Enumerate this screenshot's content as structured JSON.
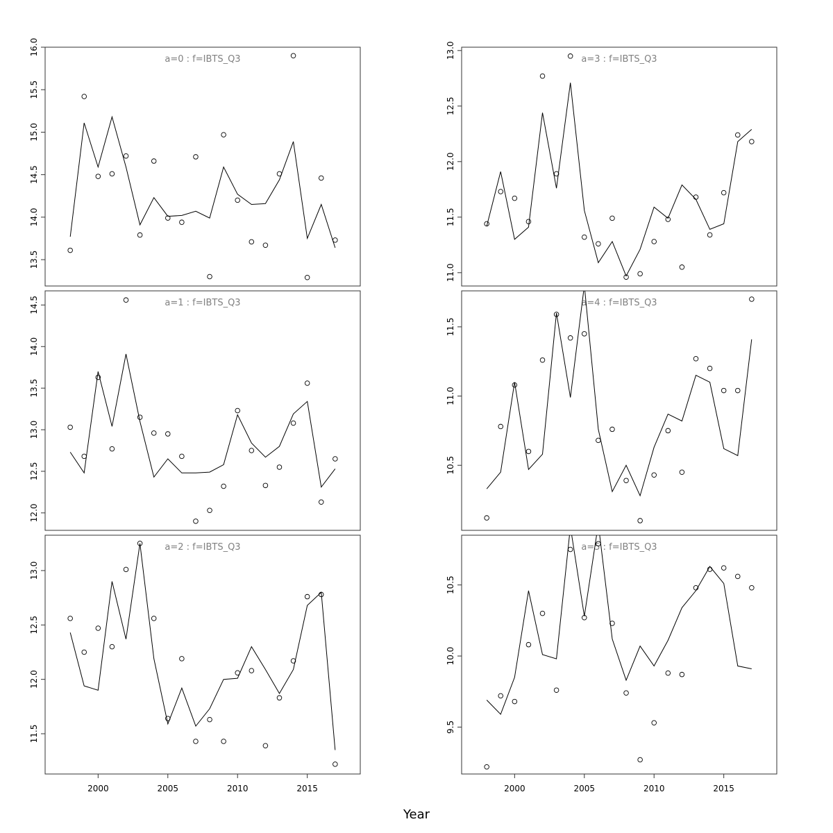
{
  "chart_data": {
    "type": "line",
    "xlabel": "Year",
    "x_ticks": [
      2000,
      2005,
      2010,
      2015
    ],
    "x": [
      1998,
      1999,
      2000,
      2001,
      2002,
      2003,
      2004,
      2005,
      2006,
      2007,
      2008,
      2009,
      2010,
      2011,
      2012,
      2013,
      2014,
      2015,
      2016,
      2017
    ],
    "xlim": [
      1996.2,
      2018.8
    ],
    "grid": false,
    "panels": [
      {
        "label": "a=0  :  f=IBTS_Q3",
        "ylim": [
          13.19,
          16.0
        ],
        "y_ticks": [
          13.5,
          14.0,
          14.5,
          15.0,
          15.5,
          16.0
        ],
        "observed": [
          13.61,
          15.42,
          14.48,
          14.51,
          14.72,
          13.79,
          14.66,
          13.99,
          13.94,
          14.71,
          13.3,
          14.97,
          14.2,
          13.71,
          13.67,
          14.51,
          15.9,
          13.29,
          14.46,
          13.73
        ],
        "fitted": [
          13.77,
          15.11,
          14.59,
          15.18,
          14.59,
          13.91,
          14.23,
          14.01,
          14.02,
          14.07,
          13.99,
          14.59,
          14.27,
          14.15,
          14.16,
          14.44,
          14.89,
          13.75,
          14.15,
          13.64
        ]
      },
      {
        "label": "a=3  :  f=IBTS_Q3",
        "ylim": [
          10.88,
          13.03
        ],
        "y_ticks": [
          11.0,
          11.5,
          12.0,
          12.5,
          13.0
        ],
        "observed": [
          11.44,
          11.73,
          11.67,
          11.46,
          12.77,
          11.89,
          12.95,
          11.32,
          11.26,
          11.49,
          10.96,
          10.99,
          11.28,
          11.48,
          11.05,
          11.68,
          11.34,
          11.72,
          12.24,
          12.18
        ],
        "fitted": [
          11.42,
          11.91,
          11.3,
          11.41,
          12.44,
          11.76,
          12.71,
          11.56,
          11.09,
          11.28,
          10.97,
          11.21,
          11.59,
          11.49,
          11.79,
          11.66,
          11.39,
          11.44,
          12.18,
          12.29
        ]
      },
      {
        "label": "a=1  :  f=IBTS_Q3",
        "ylim": [
          11.79,
          14.67
        ],
        "y_ticks": [
          12.0,
          12.5,
          13.0,
          13.5,
          14.0,
          14.5
        ],
        "observed": [
          13.03,
          12.68,
          13.63,
          12.77,
          14.56,
          13.15,
          12.96,
          12.95,
          12.68,
          11.9,
          12.03,
          12.32,
          13.23,
          12.75,
          12.33,
          12.55,
          13.08,
          13.56,
          12.13,
          12.65
        ],
        "fitted": [
          12.73,
          12.48,
          13.7,
          13.04,
          13.91,
          13.1,
          12.43,
          12.65,
          12.48,
          12.48,
          12.49,
          12.58,
          13.18,
          12.84,
          12.67,
          12.8,
          13.19,
          13.34,
          12.31,
          12.53
        ]
      },
      {
        "label": "a=4  :  f=IBTS_Q3",
        "ylim": [
          10.03,
          11.76
        ],
        "y_ticks": [
          10.5,
          11.0,
          11.5
        ],
        "observed": [
          10.12,
          10.78,
          11.08,
          10.6,
          11.26,
          11.59,
          11.42,
          11.45,
          10.68,
          10.76,
          10.39,
          10.1,
          10.43,
          10.75,
          10.45,
          11.27,
          11.2,
          11.04,
          11.04,
          11.7
        ],
        "fitted": [
          10.33,
          10.45,
          11.1,
          10.47,
          10.58,
          11.6,
          10.99,
          11.8,
          10.76,
          10.31,
          10.5,
          10.28,
          10.63,
          10.87,
          10.82,
          11.15,
          11.1,
          10.62,
          10.57,
          11.41
        ]
      },
      {
        "label": "a=2  :  f=IBTS_Q3",
        "ylim": [
          11.13,
          13.325
        ],
        "y_ticks": [
          11.5,
          12.0,
          12.5,
          13.0
        ],
        "observed": [
          12.56,
          12.25,
          12.47,
          12.3,
          13.01,
          13.25,
          12.56,
          11.64,
          12.19,
          11.43,
          11.63,
          11.43,
          12.06,
          12.08,
          11.39,
          11.83,
          12.17,
          12.76,
          12.78,
          11.22
        ],
        "fitted": [
          12.43,
          11.94,
          11.9,
          12.9,
          12.37,
          13.25,
          12.19,
          11.59,
          11.92,
          11.57,
          11.73,
          12.0,
          12.01,
          12.3,
          12.09,
          11.87,
          12.09,
          12.68,
          12.8,
          11.35
        ]
      },
      {
        "label": "a=5  :  f=IBTS_Q3",
        "ylim": [
          9.17,
          10.85
        ],
        "y_ticks": [
          9.5,
          10.0,
          10.5
        ],
        "observed": [
          9.22,
          9.72,
          9.68,
          10.08,
          10.3,
          9.76,
          10.75,
          10.27,
          10.79,
          10.23,
          9.74,
          9.27,
          9.53,
          9.88,
          9.87,
          10.48,
          10.61,
          10.62,
          10.56,
          10.48
        ],
        "fitted": [
          9.69,
          9.59,
          9.85,
          10.46,
          10.01,
          9.98,
          10.91,
          10.28,
          10.93,
          10.12,
          9.83,
          10.07,
          9.93,
          10.11,
          10.34,
          10.46,
          10.63,
          10.51,
          9.93,
          9.91
        ]
      }
    ],
    "colors": {
      "points": "#000000",
      "line": "#000000",
      "panel_label": "#808080"
    }
  }
}
